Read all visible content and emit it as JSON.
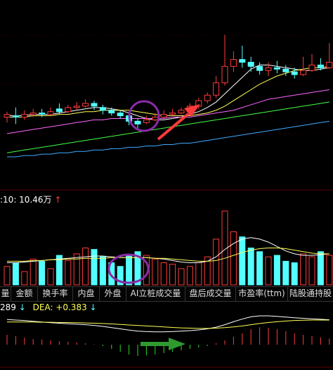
{
  "colors": {
    "up": "#ff3b3b",
    "down": "#54ffff",
    "ma5": "#ffffff",
    "ma10": "#ffff55",
    "ma20": "#ff66ff",
    "ma30": "#44ff44",
    "ma60": "#3fa9ff"
  },
  "volume_header": {
    "label": ":10: 10.46万",
    "arrow": "↑"
  },
  "tabs": [
    "量",
    "金额",
    "换手率",
    "内盘",
    "外盘",
    "AI立桩成交量",
    "盘后成交量",
    "市盈率(ttm)",
    "陆股通持股"
  ],
  "macd_header": {
    "left_value": "289",
    "left_arrow": "↓",
    "dea_label": "DEA: +0.383",
    "dea_arrow": "↓"
  },
  "icons": {
    "trend_arrow": "red-arrow-icon",
    "highlight": "purple-circle-icon",
    "macd_arrow": "green-arrow-icon"
  },
  "chart_data": {
    "type": "candlestick",
    "candles": [
      {
        "open": 0.3,
        "close": 0.32,
        "high": 0.34,
        "low": 0.26
      },
      {
        "open": 0.31,
        "close": 0.3,
        "high": 0.37,
        "low": 0.25
      },
      {
        "open": 0.3,
        "close": 0.32,
        "high": 0.35,
        "low": 0.28
      },
      {
        "open": 0.32,
        "close": 0.33,
        "high": 0.36,
        "low": 0.3
      },
      {
        "open": 0.33,
        "close": 0.32,
        "high": 0.36,
        "low": 0.3
      },
      {
        "open": 0.32,
        "close": 0.34,
        "high": 0.37,
        "low": 0.31
      },
      {
        "open": 0.36,
        "close": 0.34,
        "high": 0.4,
        "low": 0.32
      },
      {
        "open": 0.34,
        "close": 0.37,
        "high": 0.39,
        "low": 0.33
      },
      {
        "open": 0.37,
        "close": 0.38,
        "high": 0.41,
        "low": 0.35
      },
      {
        "open": 0.38,
        "close": 0.4,
        "high": 0.43,
        "low": 0.37
      },
      {
        "open": 0.4,
        "close": 0.38,
        "high": 0.42,
        "low": 0.35
      },
      {
        "open": 0.37,
        "close": 0.35,
        "high": 0.39,
        "low": 0.32
      },
      {
        "open": 0.35,
        "close": 0.33,
        "high": 0.37,
        "low": 0.31
      },
      {
        "open": 0.33,
        "close": 0.31,
        "high": 0.35,
        "low": 0.29
      },
      {
        "open": 0.31,
        "close": 0.27,
        "high": 0.33,
        "low": 0.24
      },
      {
        "open": 0.27,
        "close": 0.25,
        "high": 0.29,
        "low": 0.22
      },
      {
        "open": 0.26,
        "close": 0.28,
        "high": 0.31,
        "low": 0.25
      },
      {
        "open": 0.28,
        "close": 0.3,
        "high": 0.33,
        "low": 0.27
      },
      {
        "open": 0.3,
        "close": 0.32,
        "high": 0.35,
        "low": 0.29
      },
      {
        "open": 0.32,
        "close": 0.33,
        "high": 0.36,
        "low": 0.31
      },
      {
        "open": 0.33,
        "close": 0.35,
        "high": 0.37,
        "low": 0.32
      },
      {
        "open": 0.35,
        "close": 0.38,
        "high": 0.4,
        "low": 0.34
      },
      {
        "open": 0.38,
        "close": 0.42,
        "high": 0.44,
        "low": 0.36
      },
      {
        "open": 0.42,
        "close": 0.46,
        "high": 0.48,
        "low": 0.4
      },
      {
        "open": 0.46,
        "close": 0.55,
        "high": 0.6,
        "low": 0.44
      },
      {
        "open": 0.55,
        "close": 0.67,
        "high": 0.9,
        "low": 0.53
      },
      {
        "open": 0.67,
        "close": 0.72,
        "high": 0.78,
        "low": 0.63
      },
      {
        "open": 0.72,
        "close": 0.7,
        "high": 0.82,
        "low": 0.66
      },
      {
        "open": 0.7,
        "close": 0.67,
        "high": 0.74,
        "low": 0.63
      },
      {
        "open": 0.67,
        "close": 0.64,
        "high": 0.7,
        "low": 0.61
      },
      {
        "open": 0.64,
        "close": 0.66,
        "high": 0.7,
        "low": 0.6
      },
      {
        "open": 0.66,
        "close": 0.65,
        "high": 0.71,
        "low": 0.62
      },
      {
        "open": 0.65,
        "close": 0.63,
        "high": 0.68,
        "low": 0.6
      },
      {
        "open": 0.63,
        "close": 0.61,
        "high": 0.66,
        "low": 0.58
      },
      {
        "open": 0.61,
        "close": 0.64,
        "high": 0.74,
        "low": 0.6
      },
      {
        "open": 0.64,
        "close": 0.68,
        "high": 0.76,
        "low": 0.63
      },
      {
        "open": 0.68,
        "close": 0.66,
        "high": 0.73,
        "low": 0.64
      },
      {
        "open": 0.66,
        "close": 0.7,
        "high": 0.84,
        "low": 0.65
      }
    ],
    "ma_lines": [
      {
        "key": "ma5",
        "values": [
          0.31,
          0.31,
          0.31,
          0.32,
          0.32,
          0.32,
          0.33,
          0.34,
          0.35,
          0.36,
          0.37,
          0.37,
          0.36,
          0.35,
          0.33,
          0.31,
          0.29,
          0.28,
          0.28,
          0.29,
          0.3,
          0.32,
          0.34,
          0.37,
          0.41,
          0.47,
          0.53,
          0.59,
          0.65,
          0.68,
          0.68,
          0.67,
          0.66,
          0.65,
          0.64,
          0.64,
          0.65,
          0.66
        ]
      },
      {
        "key": "ma10",
        "values": [
          0.3,
          0.3,
          0.3,
          0.31,
          0.31,
          0.31,
          0.32,
          0.32,
          0.33,
          0.34,
          0.34,
          0.35,
          0.35,
          0.35,
          0.35,
          0.34,
          0.33,
          0.32,
          0.31,
          0.31,
          0.31,
          0.31,
          0.32,
          0.33,
          0.35,
          0.38,
          0.42,
          0.46,
          0.5,
          0.54,
          0.57,
          0.6,
          0.62,
          0.64,
          0.65,
          0.66,
          0.66,
          0.67
        ]
      },
      {
        "key": "ma20",
        "values": [
          0.18,
          0.19,
          0.2,
          0.21,
          0.22,
          0.23,
          0.24,
          0.25,
          0.26,
          0.27,
          0.28,
          0.28,
          0.29,
          0.29,
          0.29,
          0.29,
          0.29,
          0.29,
          0.29,
          0.3,
          0.3,
          0.3,
          0.31,
          0.32,
          0.33,
          0.34,
          0.35,
          0.37,
          0.39,
          0.41,
          0.43,
          0.44,
          0.45,
          0.46,
          0.47,
          0.48,
          0.49,
          0.5
        ]
      },
      {
        "key": "ma30",
        "values": [
          0.04,
          0.05,
          0.06,
          0.07,
          0.08,
          0.09,
          0.1,
          0.11,
          0.12,
          0.13,
          0.14,
          0.15,
          0.16,
          0.17,
          0.18,
          0.19,
          0.2,
          0.21,
          0.22,
          0.23,
          0.24,
          0.25,
          0.26,
          0.27,
          0.28,
          0.29,
          0.3,
          0.31,
          0.32,
          0.33,
          0.34,
          0.35,
          0.36,
          0.37,
          0.38,
          0.39,
          0.4,
          0.41
        ]
      },
      {
        "key": "ma60",
        "values": [
          0.01,
          0.01,
          0.02,
          0.02,
          0.03,
          0.03,
          0.04,
          0.04,
          0.05,
          0.05,
          0.06,
          0.06,
          0.07,
          0.07,
          0.08,
          0.08,
          0.09,
          0.09,
          0.1,
          0.1,
          0.11,
          0.11,
          0.12,
          0.13,
          0.14,
          0.15,
          0.16,
          0.17,
          0.18,
          0.19,
          0.2,
          0.21,
          0.22,
          0.23,
          0.24,
          0.25,
          0.26,
          0.27
        ]
      }
    ],
    "volume": [
      0.25,
      0.3,
      0.18,
      0.35,
      0.32,
      0.22,
      0.4,
      0.33,
      0.42,
      0.5,
      0.48,
      0.38,
      0.3,
      0.25,
      0.4,
      0.45,
      0.4,
      0.35,
      0.3,
      0.28,
      0.22,
      0.25,
      0.3,
      0.38,
      0.62,
      1.0,
      0.72,
      0.65,
      0.5,
      0.45,
      0.38,
      0.4,
      0.32,
      0.3,
      0.42,
      0.38,
      0.45,
      0.4
    ],
    "volume_ma": [
      0.3,
      0.3,
      0.31,
      0.32,
      0.33,
      0.34,
      0.35,
      0.36,
      0.37,
      0.38,
      0.39,
      0.39,
      0.38,
      0.37,
      0.37,
      0.37,
      0.37,
      0.36,
      0.35,
      0.33,
      0.31,
      0.3,
      0.3,
      0.32,
      0.38,
      0.48,
      0.56,
      0.62,
      0.64,
      0.62,
      0.58,
      0.52,
      0.46,
      0.42,
      0.4,
      0.4,
      0.41,
      0.42
    ],
    "volume_ma2": [
      0.32,
      0.32,
      0.32,
      0.33,
      0.33,
      0.34,
      0.34,
      0.35,
      0.35,
      0.36,
      0.36,
      0.36,
      0.37,
      0.37,
      0.37,
      0.37,
      0.37,
      0.36,
      0.36,
      0.35,
      0.34,
      0.33,
      0.32,
      0.32,
      0.33,
      0.36,
      0.4,
      0.44,
      0.47,
      0.49,
      0.5,
      0.5,
      0.49,
      0.47,
      0.45,
      0.43,
      0.42,
      0.42
    ],
    "macd_hist": [
      0.35,
      0.3,
      0.25,
      0.2,
      0.18,
      0.15,
      0.12,
      0.1,
      0.08,
      0.05,
      0.02,
      -0.05,
      -0.15,
      -0.25,
      -0.35,
      -0.4,
      -0.38,
      -0.35,
      -0.3,
      -0.25,
      -0.2,
      -0.15,
      -0.1,
      -0.05,
      0.05,
      0.15,
      0.28,
      0.4,
      0.55,
      0.62,
      0.6,
      0.55,
      0.48,
      0.4,
      0.35,
      0.3,
      0.26,
      0.22
    ],
    "dif": [
      0.45,
      0.43,
      0.41,
      0.38,
      0.35,
      0.32,
      0.3,
      0.28,
      0.26,
      0.24,
      0.21,
      0.17,
      0.12,
      0.07,
      0.02,
      -0.02,
      -0.04,
      -0.05,
      -0.05,
      -0.04,
      -0.02,
      0.0,
      0.03,
      0.07,
      0.14,
      0.24,
      0.36,
      0.47,
      0.56,
      0.6,
      0.6,
      0.58,
      0.55,
      0.52,
      0.5,
      0.48,
      0.46,
      0.44
    ],
    "dea": [
      0.35,
      0.35,
      0.35,
      0.35,
      0.34,
      0.34,
      0.33,
      0.33,
      0.32,
      0.31,
      0.3,
      0.29,
      0.27,
      0.25,
      0.23,
      0.21,
      0.19,
      0.17,
      0.15,
      0.13,
      0.11,
      0.1,
      0.09,
      0.09,
      0.1,
      0.12,
      0.15,
      0.19,
      0.24,
      0.29,
      0.33,
      0.36,
      0.39,
      0.41,
      0.42,
      0.43,
      0.43,
      0.43
    ]
  }
}
